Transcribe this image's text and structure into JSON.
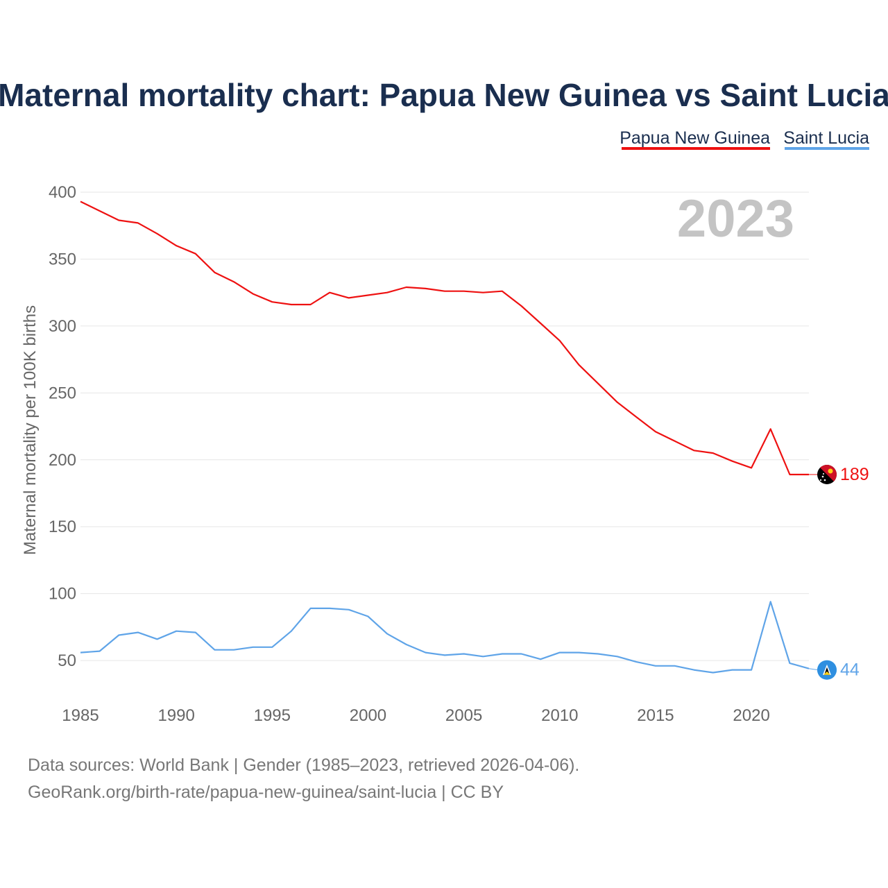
{
  "title": "Maternal mortality chart: Papua New Guinea vs Saint Lucia",
  "year_label": "2023",
  "legend": [
    {
      "name": "Papua New Guinea",
      "color": "#ee1111"
    },
    {
      "name": "Saint Lucia",
      "color": "#5fa4e8"
    }
  ],
  "footer": {
    "line1": "Data sources: World Bank | Gender (1985–2023, retrieved 2026-04-06).",
    "line2": "GeoRank.org/birth-rate/papua-new-guinea/saint-lucia | CC BY"
  },
  "end_markers": [
    {
      "series": "Papua New Guinea",
      "value_label": "189",
      "icon": "papua-new-guinea-flag-icon"
    },
    {
      "series": "Saint Lucia",
      "value_label": "44",
      "icon": "saint-lucia-flag-icon"
    }
  ],
  "chart_data": {
    "type": "line",
    "title": "Maternal mortality chart: Papua New Guinea vs Saint Lucia",
    "xlabel": "",
    "ylabel": "Maternal mortality per 100K births",
    "xlim": [
      1985,
      2023
    ],
    "ylim": [
      20,
      400
    ],
    "x_ticks": [
      1985,
      1990,
      1995,
      2000,
      2005,
      2010,
      2015,
      2020
    ],
    "y_ticks": [
      50,
      100,
      150,
      200,
      250,
      300,
      350,
      400
    ],
    "x": [
      1985,
      1986,
      1987,
      1988,
      1989,
      1990,
      1991,
      1992,
      1993,
      1994,
      1995,
      1996,
      1997,
      1998,
      1999,
      2000,
      2001,
      2002,
      2003,
      2004,
      2005,
      2006,
      2007,
      2008,
      2009,
      2010,
      2011,
      2012,
      2013,
      2014,
      2015,
      2016,
      2017,
      2018,
      2019,
      2020,
      2021,
      2022,
      2023
    ],
    "series": [
      {
        "name": "Papua New Guinea",
        "color": "#ee1111",
        "values": [
          393,
          386,
          379,
          377,
          369,
          360,
          354,
          340,
          333,
          324,
          318,
          316,
          316,
          325,
          321,
          323,
          325,
          329,
          328,
          326,
          326,
          325,
          326,
          315,
          302,
          289,
          271,
          257,
          243,
          232,
          221,
          214,
          207,
          205,
          199,
          194,
          223,
          189,
          189
        ]
      },
      {
        "name": "Saint Lucia",
        "color": "#5fa4e8",
        "values": [
          56,
          57,
          69,
          71,
          66,
          72,
          71,
          58,
          58,
          60,
          60,
          72,
          89,
          89,
          88,
          83,
          70,
          62,
          56,
          54,
          55,
          53,
          55,
          55,
          51,
          56,
          56,
          55,
          53,
          49,
          46,
          46,
          43,
          41,
          43,
          43,
          94,
          48,
          44
        ]
      }
    ],
    "legend_position": "top-right",
    "grid": true
  }
}
